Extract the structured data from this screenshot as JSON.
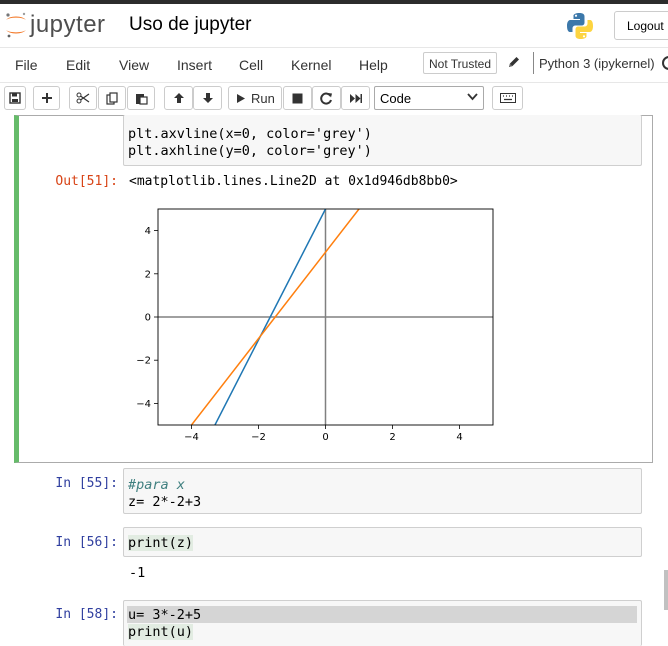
{
  "app": {
    "logo_text": "jupyter",
    "notebook_title": "Uso de jupyter",
    "logout_label": "Logout"
  },
  "menu": {
    "items": [
      "File",
      "Edit",
      "View",
      "Insert",
      "Cell",
      "Kernel",
      "Help"
    ],
    "trust_label": "Not Trusted",
    "kernel_name": "Python 3 (ipykernel)"
  },
  "toolbar": {
    "run_label": "Run",
    "cell_type": "Code",
    "cell_type_options": [
      "Code"
    ]
  },
  "cells": {
    "c51": {
      "code": [
        "plt.axvline(x=0, color='grey')",
        "plt.axhline(y=0, color='grey')"
      ],
      "out_prompt": "Out[51]:",
      "out_text": "<matplotlib.lines.Line2D at 0x1d946db8bb0>"
    },
    "c55": {
      "prompt": "In [55]:",
      "code": [
        "#para x",
        "z= 2*-2+3"
      ]
    },
    "c56": {
      "prompt": "In [56]:",
      "code": [
        "print(z)"
      ],
      "output": "-1"
    },
    "c58": {
      "prompt": "In [58]:",
      "code": [
        "u= 3*-2+5",
        "print(u)"
      ]
    }
  },
  "chart_data": {
    "type": "line",
    "xlim": [
      -5,
      5
    ],
    "ylim": [
      -5,
      5
    ],
    "xticks": [
      -4,
      -2,
      0,
      2,
      4
    ],
    "yticks": [
      -4,
      -2,
      0,
      2,
      4
    ],
    "series": [
      {
        "color": "#1f77b4",
        "x": [
          -3.3,
          0
        ],
        "y": [
          -5,
          5
        ]
      },
      {
        "color": "#ff7f0e",
        "x": [
          -4,
          1
        ],
        "y": [
          -5,
          5
        ]
      }
    ],
    "reference_lines": {
      "axvline_x": 0,
      "axhline_y": 0,
      "color": "#808080"
    }
  }
}
